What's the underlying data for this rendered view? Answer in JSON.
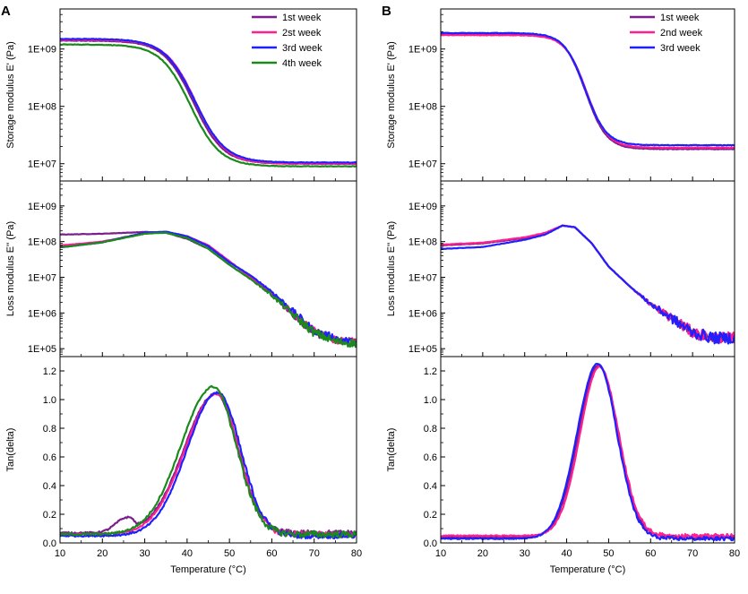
{
  "figure": {
    "x_label": "Temperature (°C)",
    "x_ticks": [
      "10",
      "20",
      "30",
      "40",
      "50",
      "60",
      "70",
      "80"
    ],
    "x_range": [
      10,
      80
    ]
  },
  "chart_data": [
    {
      "id": "A1",
      "panel_letter": "A",
      "type": "line",
      "yscale": "log",
      "ylabel": "Storage modulus E' (Pa)",
      "ylim": [
        5000000.0,
        5000000000.0
      ],
      "y_ticks": [
        {
          "v": 10000000.0,
          "label": "1E+07"
        },
        {
          "v": 100000000.0,
          "label": "1E+08"
        },
        {
          "v": 1000000000.0,
          "label": "1E+09"
        }
      ],
      "legend": true,
      "series": [
        {
          "name": "1st week",
          "color": "#7b1f8c",
          "model": "sig",
          "params": {
            "lo": 10000000.0,
            "hi": 1400000000.0,
            "c": 41.5,
            "w": 3.5
          }
        },
        {
          "name": "2st week",
          "color": "#ff1f8f",
          "model": "sig",
          "params": {
            "lo": 10000000.0,
            "hi": 1450000000.0,
            "c": 42.0,
            "w": 3.5
          }
        },
        {
          "name": "3rd week",
          "color": "#2020ff",
          "model": "sig",
          "params": {
            "lo": 10500000.0,
            "hi": 1500000000.0,
            "c": 41.8,
            "w": 3.6
          }
        },
        {
          "name": "4th week",
          "color": "#1a8a1a",
          "model": "sig",
          "params": {
            "lo": 9000000.0,
            "hi": 1200000000.0,
            "c": 40.8,
            "w": 3.5
          }
        }
      ]
    },
    {
      "id": "A2",
      "type": "line",
      "yscale": "log",
      "ylabel": "Loss modulus E'' (Pa)",
      "ylim": [
        60000.0,
        5000000000.0
      ],
      "y_ticks": [
        {
          "v": 100000.0,
          "label": "1E+05"
        },
        {
          "v": 1000000.0,
          "label": "1E+06"
        },
        {
          "v": 10000000.0,
          "label": "1E+07"
        },
        {
          "v": 100000000.0,
          "label": "1E+08"
        },
        {
          "v": 1000000000.0,
          "label": "1E+09"
        }
      ],
      "legend": false,
      "series": [
        {
          "name": "1st week",
          "color": "#7b1f8c",
          "model": "loss",
          "params": {
            "points": [
              [
                11,
                8.2
              ],
              [
                20,
                8.22
              ],
              [
                30,
                8.27
              ],
              [
                35,
                8.25
              ],
              [
                40,
                8.08
              ],
              [
                45,
                7.8
              ],
              [
                50,
                7.35
              ],
              [
                55,
                6.95
              ],
              [
                60,
                6.55
              ],
              [
                65,
                5.95
              ],
              [
                70,
                5.45
              ],
              [
                75,
                5.25
              ],
              [
                80,
                5.2
              ]
            ],
            "noise": 0.1
          }
        },
        {
          "name": "2st week",
          "color": "#ff1f8f",
          "model": "loss",
          "params": {
            "points": [
              [
                11,
                7.9
              ],
              [
                20,
                8.0
              ],
              [
                30,
                8.23
              ],
              [
                35,
                8.27
              ],
              [
                40,
                8.15
              ],
              [
                45,
                7.9
              ],
              [
                50,
                7.45
              ],
              [
                55,
                7.0
              ],
              [
                60,
                6.55
              ],
              [
                65,
                6.0
              ],
              [
                70,
                5.5
              ],
              [
                75,
                5.25
              ],
              [
                80,
                5.2
              ]
            ],
            "noise": 0.1
          }
        },
        {
          "name": "3rd week",
          "color": "#2020ff",
          "model": "loss",
          "params": {
            "points": [
              [
                11,
                7.85
              ],
              [
                20,
                7.98
              ],
              [
                30,
                8.25
              ],
              [
                35,
                8.28
              ],
              [
                40,
                8.15
              ],
              [
                45,
                7.87
              ],
              [
                50,
                7.42
              ],
              [
                55,
                7.05
              ],
              [
                60,
                6.6
              ],
              [
                65,
                6.05
              ],
              [
                70,
                5.5
              ],
              [
                75,
                5.3
              ],
              [
                80,
                5.15
              ]
            ],
            "noise": 0.1
          }
        },
        {
          "name": "4th week",
          "color": "#1a8a1a",
          "model": "loss",
          "params": {
            "points": [
              [
                11,
                7.85
              ],
              [
                20,
                7.98
              ],
              [
                30,
                8.22
              ],
              [
                35,
                8.25
              ],
              [
                40,
                8.1
              ],
              [
                45,
                7.8
              ],
              [
                50,
                7.35
              ],
              [
                55,
                6.95
              ],
              [
                60,
                6.5
              ],
              [
                65,
                5.95
              ],
              [
                70,
                5.45
              ],
              [
                75,
                5.2
              ],
              [
                80,
                5.15
              ]
            ],
            "noise": 0.12
          }
        }
      ]
    },
    {
      "id": "A3",
      "type": "line",
      "yscale": "linear",
      "ylabel": "Tan(delta)",
      "ylim": [
        0,
        1.3
      ],
      "y_ticks": [
        {
          "v": 0,
          "label": "0.0"
        },
        {
          "v": 0.2,
          "label": "0.2"
        },
        {
          "v": 0.4,
          "label": "0.4"
        },
        {
          "v": 0.6,
          "label": "0.6"
        },
        {
          "v": 0.8,
          "label": "0.8"
        },
        {
          "v": 1.0,
          "label": "1.0"
        },
        {
          "v": 1.2,
          "label": "1.2"
        }
      ],
      "legend": false,
      "series": [
        {
          "name": "1st week",
          "color": "#7b1f8c",
          "model": "tan",
          "params": {
            "peak": 1.04,
            "center": 46.8,
            "wl": 7.5,
            "wr": 5.2,
            "base": 0.07,
            "noise": 0.012,
            "bump": [
              25.5,
              0.09,
              2.5
            ]
          }
        },
        {
          "name": "2st week",
          "color": "#ff1f8f",
          "model": "tan",
          "params": {
            "peak": 1.04,
            "center": 47.0,
            "wl": 7.5,
            "wr": 5.2,
            "base": 0.06,
            "noise": 0.012
          }
        },
        {
          "name": "3rd week",
          "color": "#2020ff",
          "model": "tan",
          "params": {
            "peak": 1.05,
            "center": 47.2,
            "wl": 7.2,
            "wr": 5.4,
            "base": 0.05,
            "noise": 0.012
          }
        },
        {
          "name": "4th week",
          "color": "#1a8a1a",
          "model": "tan",
          "params": {
            "peak": 1.09,
            "center": 46.2,
            "wl": 7.6,
            "wr": 5.4,
            "base": 0.06,
            "noise": 0.014
          }
        }
      ]
    },
    {
      "id": "B1",
      "panel_letter": "B",
      "type": "line",
      "yscale": "log",
      "ylabel": "Storage modulus E' (Pa)",
      "ylim": [
        5000000.0,
        5000000000.0
      ],
      "y_ticks": [
        {
          "v": 10000000.0,
          "label": "1E+07"
        },
        {
          "v": 100000000.0,
          "label": "1E+08"
        },
        {
          "v": 1000000000.0,
          "label": "1E+09"
        }
      ],
      "legend": true,
      "series": [
        {
          "name": "1st week",
          "color": "#7b1f8c",
          "model": "sig",
          "params": {
            "lo": 18000000.0,
            "hi": 1850000000.0,
            "c": 44.5,
            "w": 2.5
          }
        },
        {
          "name": "2nd week",
          "color": "#ff1f8f",
          "model": "sig",
          "params": {
            "lo": 19000000.0,
            "hi": 1750000000.0,
            "c": 44.7,
            "w": 2.5
          }
        },
        {
          "name": "3rd week",
          "color": "#2020ff",
          "model": "sig",
          "params": {
            "lo": 21000000.0,
            "hi": 1900000000.0,
            "c": 44.4,
            "w": 2.5
          }
        }
      ]
    },
    {
      "id": "B2",
      "type": "line",
      "yscale": "log",
      "ylabel": "Loss modulus E'' (Pa)",
      "ylim": [
        60000.0,
        5000000000.0
      ],
      "y_ticks": [
        {
          "v": 100000.0,
          "label": "1E+05"
        },
        {
          "v": 1000000.0,
          "label": "1E+06"
        },
        {
          "v": 10000000.0,
          "label": "1E+07"
        },
        {
          "v": 100000000.0,
          "label": "1E+08"
        },
        {
          "v": 1000000000.0,
          "label": "1E+09"
        }
      ],
      "legend": false,
      "series": [
        {
          "name": "1st week",
          "color": "#7b1f8c",
          "model": "loss",
          "params": {
            "points": [
              [
                11,
                7.9
              ],
              [
                20,
                7.95
              ],
              [
                30,
                8.1
              ],
              [
                35,
                8.22
              ],
              [
                39,
                8.45
              ],
              [
                42,
                8.4
              ],
              [
                46,
                7.95
              ],
              [
                50,
                7.3
              ],
              [
                55,
                6.75
              ],
              [
                60,
                6.25
              ],
              [
                65,
                5.85
              ],
              [
                70,
                5.45
              ],
              [
                75,
                5.3
              ],
              [
                80,
                5.3
              ]
            ],
            "noise": 0.12
          }
        },
        {
          "name": "2nd week",
          "color": "#ff1f8f",
          "model": "loss",
          "params": {
            "points": [
              [
                11,
                7.92
              ],
              [
                20,
                7.97
              ],
              [
                30,
                8.12
              ],
              [
                35,
                8.25
              ],
              [
                39,
                8.45
              ],
              [
                42,
                8.4
              ],
              [
                46,
                7.95
              ],
              [
                50,
                7.3
              ],
              [
                55,
                6.75
              ],
              [
                60,
                6.25
              ],
              [
                65,
                5.85
              ],
              [
                70,
                5.45
              ],
              [
                75,
                5.3
              ],
              [
                80,
                5.3
              ]
            ],
            "noise": 0.16
          }
        },
        {
          "name": "3rd week",
          "color": "#2020ff",
          "model": "loss",
          "params": {
            "points": [
              [
                11,
                7.8
              ],
              [
                20,
                7.85
              ],
              [
                30,
                8.05
              ],
              [
                35,
                8.2
              ],
              [
                39,
                8.45
              ],
              [
                42,
                8.4
              ],
              [
                46,
                7.95
              ],
              [
                50,
                7.3
              ],
              [
                55,
                6.75
              ],
              [
                60,
                6.25
              ],
              [
                65,
                5.85
              ],
              [
                70,
                5.45
              ],
              [
                75,
                5.3
              ],
              [
                80,
                5.3
              ]
            ],
            "noise": 0.16
          }
        }
      ]
    },
    {
      "id": "B3",
      "type": "line",
      "yscale": "linear",
      "ylabel": "Tan(delta)",
      "ylim": [
        0,
        1.3
      ],
      "y_ticks": [
        {
          "v": 0,
          "label": "0.0"
        },
        {
          "v": 0.2,
          "label": "0.2"
        },
        {
          "v": 0.4,
          "label": "0.4"
        },
        {
          "v": 0.6,
          "label": "0.6"
        },
        {
          "v": 0.8,
          "label": "0.8"
        },
        {
          "v": 1.0,
          "label": "1.0"
        },
        {
          "v": 1.2,
          "label": "1.2"
        }
      ],
      "legend": false,
      "series": [
        {
          "name": "1st week",
          "color": "#7b1f8c",
          "model": "tan",
          "params": {
            "peak": 1.24,
            "center": 47.6,
            "wl": 4.8,
            "wr": 4.6,
            "base": 0.04,
            "noise": 0.008
          }
        },
        {
          "name": "2nd week",
          "color": "#ff1f8f",
          "model": "tan",
          "params": {
            "peak": 1.23,
            "center": 47.8,
            "wl": 4.6,
            "wr": 4.6,
            "base": 0.05,
            "noise": 0.008
          }
        },
        {
          "name": "3rd week",
          "color": "#2020ff",
          "model": "tan",
          "params": {
            "peak": 1.25,
            "center": 47.4,
            "wl": 4.9,
            "wr": 4.6,
            "base": 0.03,
            "noise": 0.008
          }
        }
      ]
    }
  ]
}
